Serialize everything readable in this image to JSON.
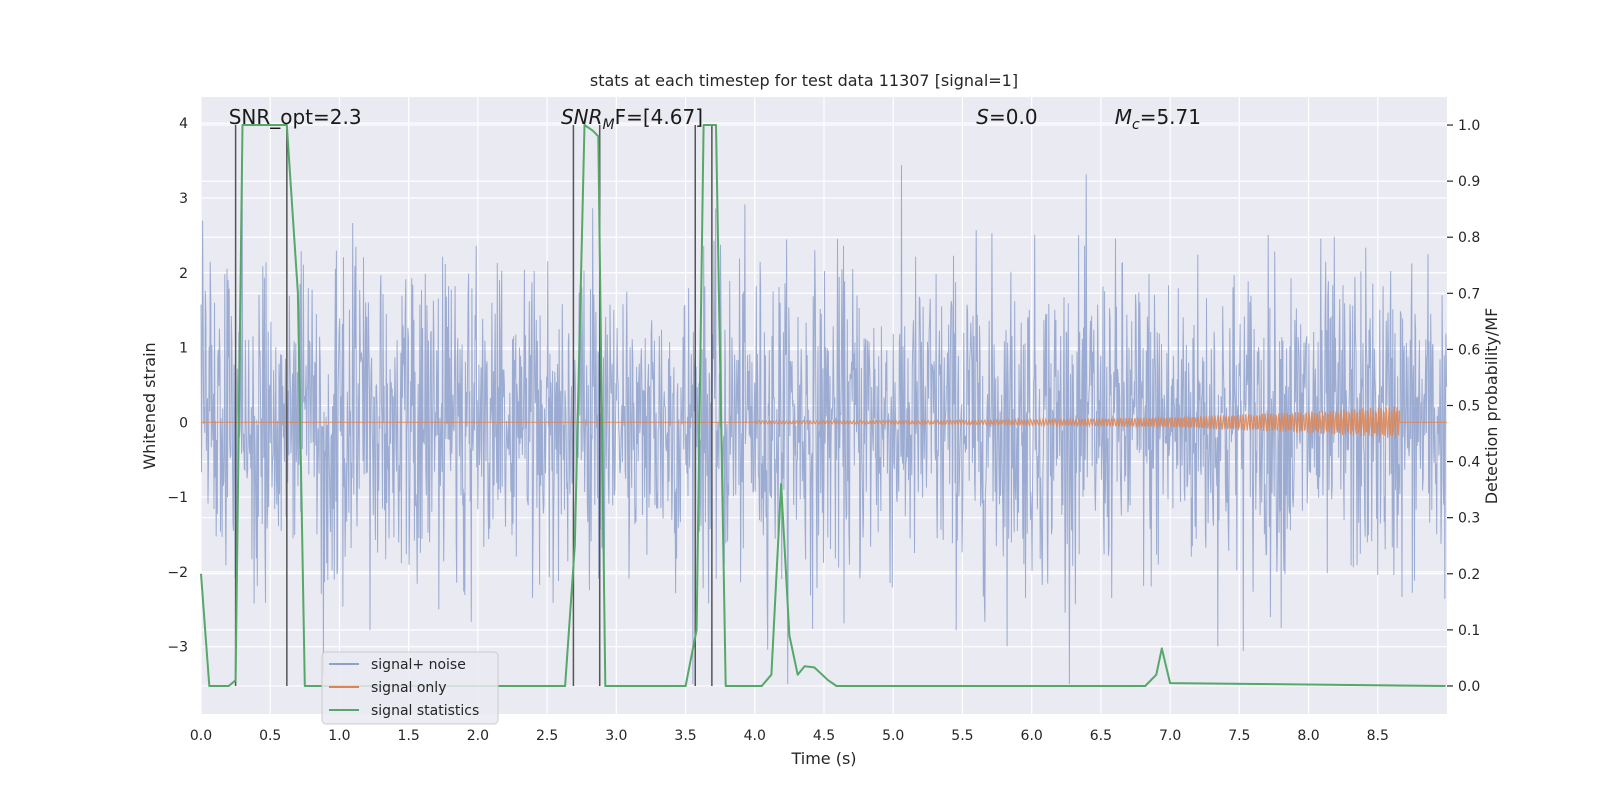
{
  "chart_data": {
    "type": "line",
    "title": "stats at each timestep for test data 11307 [signal=1]",
    "xlabel": "Time (s)",
    "ylabel_left": "Whitened strain",
    "ylabel_right": "Detection probability/MF",
    "xlim": [
      0.0,
      9.0
    ],
    "ylim_left": [
      -3.9,
      4.35
    ],
    "ylim_right": [
      -0.05,
      1.05
    ],
    "x_ticks": [
      0.0,
      0.5,
      1.0,
      1.5,
      2.0,
      2.5,
      3.0,
      3.5,
      4.0,
      4.5,
      5.0,
      5.5,
      6.0,
      6.5,
      7.0,
      7.5,
      8.0,
      8.5
    ],
    "x_tick_labels": [
      "0.0",
      "0.5",
      "1.0",
      "1.5",
      "2.0",
      "2.5",
      "3.0",
      "3.5",
      "4.0",
      "4.5",
      "5.0",
      "5.5",
      "6.0",
      "6.5",
      "7.0",
      "7.5",
      "8.0",
      "8.5"
    ],
    "y_left_ticks": [
      -3,
      -2,
      -1,
      0,
      1,
      2,
      3,
      4
    ],
    "y_left_tick_labels": [
      "−3",
      "−2",
      "−1",
      "0",
      "1",
      "2",
      "3",
      "4"
    ],
    "y_right_ticks": [
      0.0,
      0.1,
      0.2,
      0.3,
      0.4,
      0.5,
      0.6,
      0.7,
      0.8,
      0.9,
      1.0
    ],
    "y_right_tick_labels": [
      "0.0",
      "0.1",
      "0.2",
      "0.3",
      "0.4",
      "0.5",
      "0.6",
      "0.7",
      "0.8",
      "0.9",
      "1.0"
    ],
    "annotations": [
      {
        "base": "SNR_opt=2.3",
        "x": 0.2
      },
      {
        "base": "SNR",
        "sub": "M",
        "rest": "F=[4.67]",
        "x": 2.6,
        "italic_base": true
      },
      {
        "base": "S",
        "rest": "=0.0",
        "x": 5.6,
        "italic_base": true
      },
      {
        "base": "M",
        "sub": "c",
        "rest": "=5.71",
        "x": 6.6,
        "italic_base": true
      }
    ],
    "series": [
      {
        "name": "signal+ noise",
        "color": "#8da0cb",
        "description": "whitened noisy strain, roughly within -3.5 to 4"
      },
      {
        "name": "signal only",
        "color": "#dd8452",
        "description": "chirp amplitude growing until ~8.65 s"
      },
      {
        "name": "signal statistics",
        "color": "#55a868",
        "x": [
          0.0,
          0.06,
          0.2,
          0.25,
          0.3,
          0.62,
          0.7,
          0.75,
          2.63,
          2.7,
          2.77,
          2.83,
          2.87,
          2.92,
          3.5,
          3.58,
          3.63,
          3.72,
          3.79,
          4.05,
          4.12,
          4.19,
          4.25,
          4.31,
          4.36,
          4.43,
          4.53,
          4.59,
          6.82,
          6.9,
          6.94,
          7.0,
          8.99
        ],
        "y": [
          0.2,
          0.0,
          0.0,
          0.01,
          1.0,
          1.0,
          0.7,
          0.0,
          0.0,
          0.25,
          1.0,
          0.99,
          0.98,
          0.0,
          0.0,
          0.1,
          1.0,
          1.0,
          0.0,
          0.0,
          0.02,
          0.36,
          0.09,
          0.02,
          0.035,
          0.033,
          0.01,
          0.0,
          0.0,
          0.02,
          0.067,
          0.005,
          0.0
        ]
      }
    ],
    "vertical_lines_x": [
      0.25,
      0.62,
      2.69,
      2.88,
      3.57,
      3.69
    ],
    "legend": {
      "placement": "lower-left",
      "entries": [
        "signal+ noise",
        "signal only",
        "signal statistics"
      ]
    }
  }
}
